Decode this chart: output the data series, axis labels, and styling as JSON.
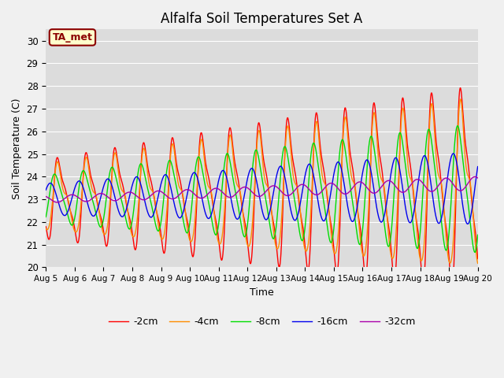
{
  "title": "Alfalfa Soil Temperatures Set A",
  "xlabel": "Time",
  "ylabel": "Soil Temperature (C)",
  "ylim": [
    20.0,
    30.5
  ],
  "yticks": [
    20.0,
    21.0,
    22.0,
    23.0,
    24.0,
    25.0,
    26.0,
    27.0,
    28.0,
    29.0,
    30.0
  ],
  "annotation_text": "TA_met",
  "annotation_color": "#8B0000",
  "annotation_bg": "#FFFFCC",
  "annotation_border": "#8B0000",
  "colors": {
    "-2cm": "#FF0000",
    "-4cm": "#FF8C00",
    "-8cm": "#00DD00",
    "-16cm": "#0000EE",
    "-32cm": "#AA00AA"
  },
  "legend_labels": [
    "-2cm",
    "-4cm",
    "-8cm",
    "-16cm",
    "-32cm"
  ],
  "xtick_labels": [
    "Aug 5",
    "Aug 6",
    "Aug 7",
    "Aug 8",
    "Aug 9",
    "Aug 10",
    "Aug 11",
    "Aug 12",
    "Aug 13",
    "Aug 14",
    "Aug 15",
    "Aug 16",
    "Aug 17",
    "Aug 18",
    "Aug 19",
    "Aug 20"
  ],
  "xtick_positions": [
    0,
    24,
    48,
    72,
    96,
    120,
    144,
    168,
    192,
    216,
    240,
    264,
    288,
    312,
    336,
    360
  ]
}
